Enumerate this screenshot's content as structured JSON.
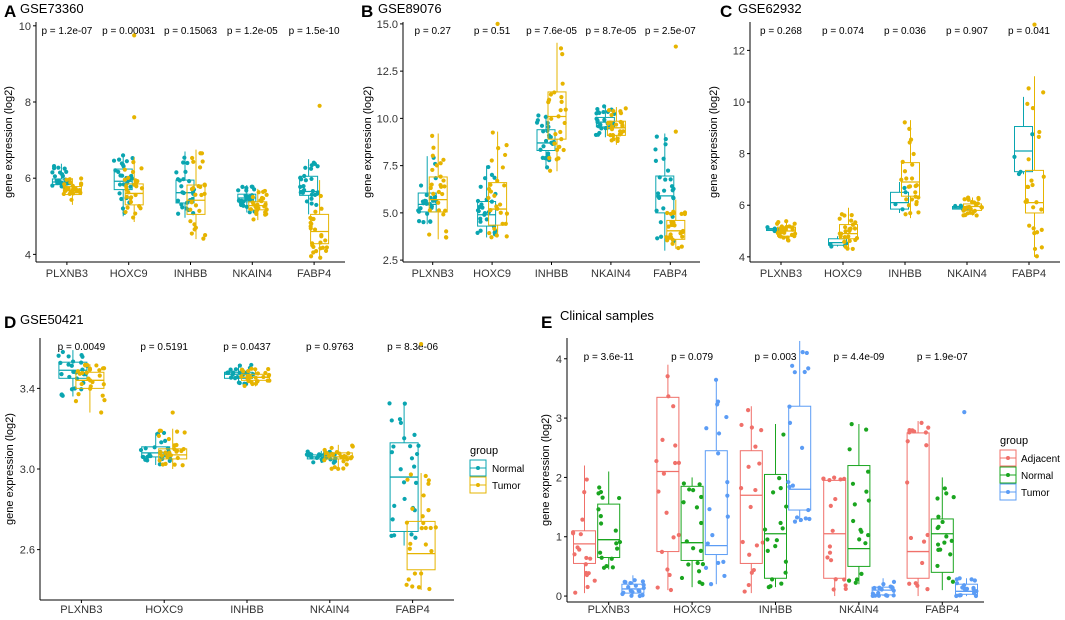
{
  "colors": {
    "normal": "#0aa5b0",
    "tumor": "#e6b400",
    "adjacent": "#f0706a",
    "normal_e": "#1aa51f",
    "tumor_e": "#5b9cf5"
  },
  "chart_data": [
    {
      "panel": "A",
      "type": "box",
      "title": "GSE73360",
      "ylabel": "gene expression (log2)",
      "ylim": [
        3.8,
        10.1
      ],
      "yticks": [
        "4",
        "6",
        "8",
        "10"
      ],
      "categories": [
        "PLXNB3",
        "HOXC9",
        "INHBB",
        "NKAIN4",
        "FABP4"
      ],
      "pvalues": [
        "p = 1.2e-07",
        "p = 0.00031",
        "p = 0.15063",
        "p = 1.2e-05",
        "p = 1.5e-10"
      ],
      "series": [
        {
          "name": "Normal",
          "color": "normal",
          "boxes": [
            [
              5.75,
              5.83,
              5.9,
              5.98,
              6.38
            ],
            [
              5.0,
              5.7,
              5.92,
              6.24,
              6.6
            ],
            [
              4.96,
              5.35,
              5.62,
              5.95,
              6.7
            ],
            [
              5.1,
              5.38,
              5.48,
              5.58,
              5.82
            ],
            [
              5.05,
              5.55,
              5.65,
              6.05,
              6.5
            ]
          ]
        },
        {
          "name": "Tumor",
          "color": "tumor",
          "boxes": [
            [
              5.3,
              5.57,
              5.67,
              5.78,
              6.0
            ],
            [
              4.85,
              5.3,
              5.6,
              5.85,
              6.55
            ],
            [
              4.4,
              5.05,
              5.42,
              5.82,
              6.75
            ],
            [
              4.9,
              5.17,
              5.28,
              5.38,
              5.72
            ],
            [
              3.9,
              4.28,
              4.6,
              5.05,
              5.95
            ]
          ]
        }
      ],
      "outliers": [
        [
          1,
          1,
          9.75
        ],
        [
          1,
          1,
          7.6
        ],
        [
          1,
          4,
          7.9
        ]
      ]
    },
    {
      "panel": "B",
      "type": "box",
      "title": "GSE89076",
      "ylabel": "gene expression (log2)",
      "ylim": [
        2.4,
        15.1
      ],
      "yticks": [
        "2.5",
        "5.0",
        "7.5",
        "10.0",
        "12.5",
        "15.0"
      ],
      "categories": [
        "PLXNB3",
        "HOXC9",
        "INHBB",
        "NKAIN4",
        "FABP4"
      ],
      "pvalues": [
        "p = 0.27",
        "p = 0.51",
        "p = 7.6e-05",
        "p = 8.7e-05",
        "p = 2.5e-07"
      ],
      "series": [
        {
          "name": "Normal",
          "color": "normal",
          "boxes": [
            [
              4.4,
              5.05,
              5.45,
              6.05,
              8.0
            ],
            [
              3.7,
              4.3,
              4.9,
              5.6,
              7.5
            ],
            [
              7.4,
              8.3,
              8.7,
              9.4,
              10.2
            ],
            [
              9.0,
              9.55,
              9.8,
              10.05,
              10.7
            ],
            [
              3.0,
              5.0,
              5.9,
              6.95,
              9.2
            ]
          ]
        },
        {
          "name": "Tumor",
          "color": "tumor",
          "boxes": [
            [
              3.6,
              5.05,
              5.7,
              6.9,
              9.2
            ],
            [
              3.7,
              4.35,
              5.2,
              6.6,
              9.3
            ],
            [
              7.2,
              8.9,
              10.1,
              11.4,
              14.0
            ],
            [
              8.6,
              9.1,
              9.5,
              9.85,
              10.6
            ],
            [
              3.1,
              3.6,
              4.05,
              4.6,
              5.7
            ]
          ]
        }
      ],
      "outliers": [
        [
          1,
          4,
          9.3
        ],
        [
          1,
          4,
          13.8
        ],
        [
          1,
          1,
          15.0
        ]
      ]
    },
    {
      "panel": "C",
      "type": "box",
      "title": "GSE62932",
      "ylabel": "gene expression (log2)",
      "ylim": [
        3.8,
        13.1
      ],
      "yticks": [
        "4",
        "6",
        "8",
        "10",
        "12"
      ],
      "categories": [
        "PLXNB3",
        "HOXC9",
        "INHBB",
        "NKAIN4",
        "FABP4"
      ],
      "pvalues": [
        "p = 0.268",
        "p = 0.074",
        "p = 0.036",
        "p = 0.907",
        "p = 0.041"
      ],
      "series": [
        {
          "name": "Normal",
          "color": "normal",
          "boxes": [
            [
              5.0,
              5.02,
              5.05,
              5.1,
              5.15
            ],
            [
              4.4,
              4.45,
              4.55,
              4.7,
              4.8
            ],
            [
              5.7,
              5.85,
              6.1,
              6.5,
              6.9
            ],
            [
              5.8,
              5.85,
              5.9,
              5.95,
              6.0
            ],
            [
              7.2,
              7.3,
              8.1,
              9.05,
              10.2
            ]
          ]
        },
        {
          "name": "Tumor",
          "color": "tumor",
          "boxes": [
            [
              4.6,
              4.8,
              5.0,
              5.15,
              5.4
            ],
            [
              4.3,
              4.7,
              4.9,
              5.25,
              5.9
            ],
            [
              5.5,
              6.35,
              6.9,
              7.65,
              9.3
            ],
            [
              5.6,
              5.8,
              5.95,
              6.05,
              6.3
            ],
            [
              4.0,
              5.7,
              6.1,
              7.35,
              11.0
            ]
          ]
        }
      ],
      "outliers": [
        [
          1,
          4,
          13.0
        ]
      ]
    },
    {
      "panel": "D",
      "type": "box",
      "title": "GSE50421",
      "ylabel": "gene expression (log2)",
      "ylim": [
        2.35,
        3.65
      ],
      "yticks": [
        "2.6",
        "3.0",
        "3.4"
      ],
      "categories": [
        "PLXNB3",
        "HOXC9",
        "INHBB",
        "NKAIN4",
        "FABP4"
      ],
      "pvalues": [
        "p = 0.0049",
        "p = 0.5191",
        "p = 0.0437",
        "p = 0.9763",
        "p = 8.3e-06"
      ],
      "series": [
        {
          "name": "Normal",
          "color": "normal",
          "boxes": [
            [
              3.36,
              3.45,
              3.49,
              3.53,
              3.59
            ],
            [
              3.02,
              3.06,
              3.08,
              3.11,
              3.18
            ],
            [
              3.42,
              3.45,
              3.47,
              3.48,
              3.52
            ],
            [
              3.03,
              3.05,
              3.06,
              3.07,
              3.09
            ],
            [
              2.62,
              2.69,
              2.96,
              3.13,
              3.33
            ]
          ]
        },
        {
          "name": "Tumor",
          "color": "tumor",
          "boxes": [
            [
              3.28,
              3.4,
              3.44,
              3.48,
              3.52
            ],
            [
              3.0,
              3.05,
              3.07,
              3.1,
              3.2
            ],
            [
              3.41,
              3.44,
              3.455,
              3.47,
              3.5
            ],
            [
              3.0,
              3.05,
              3.06,
              3.08,
              3.12
            ],
            [
              2.4,
              2.5,
              2.58,
              2.74,
              2.98
            ]
          ]
        }
      ],
      "outliers": [
        [
          1,
          1,
          3.28
        ],
        [
          1,
          4,
          3.62
        ]
      ]
    },
    {
      "panel": "E",
      "type": "box",
      "title": "Clinical samples",
      "ylabel": "gene expression (log2)",
      "ylim": [
        -0.1,
        4.35
      ],
      "yticks": [
        "0",
        "1",
        "2",
        "3",
        "4"
      ],
      "categories": [
        "PLXNB3",
        "HOXC9",
        "INHBB",
        "NKAIN4",
        "FABP4"
      ],
      "pvalues": [
        "p = 3.6e-11",
        "p = 0.079",
        "p = 0.003",
        "p = 4.4e-09",
        "p = 1.9e-07"
      ],
      "series": [
        {
          "name": "Adjacent",
          "color": "adjacent",
          "boxes": [
            [
              0.05,
              0.55,
              0.88,
              1.1,
              2.2
            ],
            [
              0.1,
              0.75,
              2.1,
              3.35,
              3.9
            ],
            [
              0.05,
              0.55,
              1.7,
              2.45,
              3.2
            ],
            [
              0.0,
              0.3,
              1.05,
              1.95,
              2.0
            ],
            [
              0.0,
              0.3,
              0.75,
              2.75,
              2.95
            ]
          ]
        },
        {
          "name": "Normal",
          "color": "normal_e",
          "boxes": [
            [
              0.45,
              0.65,
              0.95,
              1.55,
              2.1
            ],
            [
              0.15,
              0.6,
              0.9,
              1.85,
              2.0
            ],
            [
              0.15,
              0.3,
              1.05,
              2.05,
              2.9
            ],
            [
              0.2,
              0.5,
              0.8,
              2.2,
              2.9
            ],
            [
              0.1,
              0.4,
              1.05,
              1.3,
              2.0
            ]
          ]
        },
        {
          "name": "Tumor",
          "color": "tumor_e",
          "boxes": [
            [
              0.0,
              0.05,
              0.12,
              0.2,
              0.35
            ],
            [
              0.2,
              0.7,
              0.85,
              2.45,
              3.65
            ],
            [
              1.25,
              1.45,
              1.8,
              3.2,
              4.3
            ],
            [
              0.0,
              0.02,
              0.1,
              0.15,
              0.3
            ],
            [
              0.0,
              0.03,
              0.08,
              0.2,
              0.3
            ]
          ]
        }
      ],
      "outliers": [
        [
          2,
          4,
          3.1
        ]
      ]
    }
  ],
  "legends": [
    {
      "title": "group",
      "items": [
        {
          "label": "Normal",
          "color": "normal"
        },
        {
          "label": "Tumor",
          "color": "tumor"
        }
      ]
    },
    {
      "title": "group",
      "items": [
        {
          "label": "Adjacent",
          "color": "adjacent"
        },
        {
          "label": "Normal",
          "color": "normal_e"
        },
        {
          "label": "Tumor",
          "color": "tumor_e"
        }
      ]
    }
  ]
}
